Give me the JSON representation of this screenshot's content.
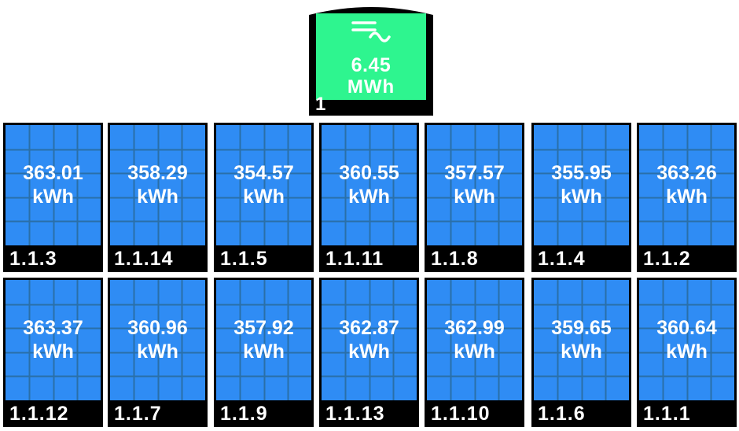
{
  "inverter": {
    "value": "6.45",
    "unit": "MWh",
    "id": "1",
    "icon": "ac-power-icon",
    "color": "#2ef58f"
  },
  "panel_color": "#2f8cf4",
  "panels": [
    {
      "value": "363.01",
      "unit": "kWh",
      "label": "1.1.3"
    },
    {
      "value": "358.29",
      "unit": "kWh",
      "label": "1.1.14"
    },
    {
      "value": "354.57",
      "unit": "kWh",
      "label": "1.1.5"
    },
    {
      "value": "360.55",
      "unit": "kWh",
      "label": "1.1.11"
    },
    {
      "value": "357.57",
      "unit": "kWh",
      "label": "1.1.8"
    },
    {
      "value": "355.95",
      "unit": "kWh",
      "label": "1.1.4"
    },
    {
      "value": "363.26",
      "unit": "kWh",
      "label": "1.1.2"
    },
    {
      "value": "363.37",
      "unit": "kWh",
      "label": "1.1.12"
    },
    {
      "value": "360.96",
      "unit": "kWh",
      "label": "1.1.7"
    },
    {
      "value": "357.92",
      "unit": "kWh",
      "label": "1.1.9"
    },
    {
      "value": "362.87",
      "unit": "kWh",
      "label": "1.1.13"
    },
    {
      "value": "362.99",
      "unit": "kWh",
      "label": "1.1.10"
    },
    {
      "value": "359.65",
      "unit": "kWh",
      "label": "1.1.6"
    },
    {
      "value": "360.64",
      "unit": "kWh",
      "label": "1.1.1"
    }
  ]
}
